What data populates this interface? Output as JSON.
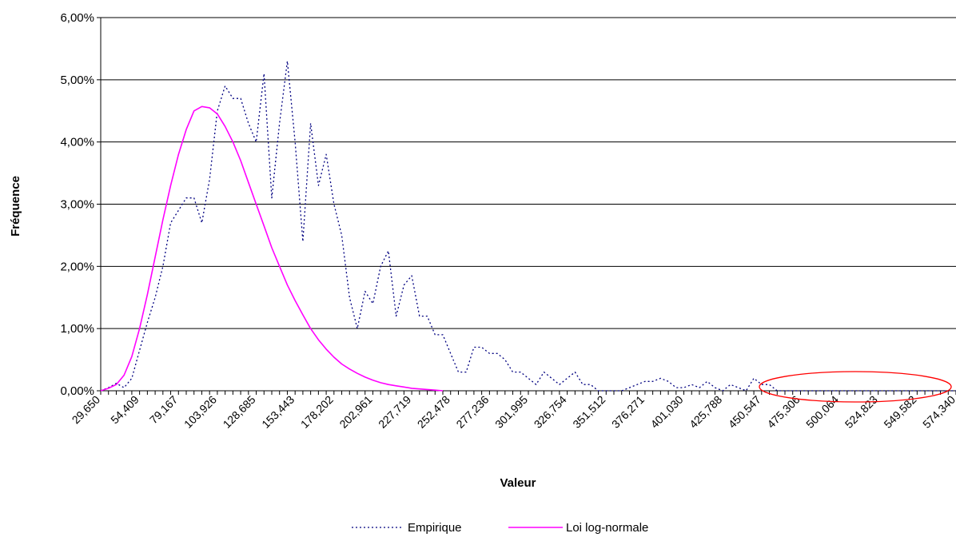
{
  "chart_data": {
    "type": "line",
    "title": "",
    "xlabel": "Valeur",
    "ylabel": "Fréquence",
    "ylim": [
      0,
      0.06
    ],
    "y_ticks": [
      "0,00%",
      "1,00%",
      "2,00%",
      "3,00%",
      "4,00%",
      "5,00%",
      "6,00%"
    ],
    "x_ticks": [
      "29,650",
      "54,409",
      "79,167",
      "103,926",
      "128,685",
      "153,443",
      "178,202",
      "202,961",
      "227,719",
      "252,478",
      "277,236",
      "301,995",
      "326,754",
      "351,512",
      "376,271",
      "401,030",
      "425,788",
      "450,547",
      "475,306",
      "500,064",
      "524,823",
      "549,582",
      "574,340"
    ],
    "x_start": 29.65,
    "x_step": 4.9517,
    "grid": "horizontal",
    "legend_position": "bottom",
    "annotation": "red ellipse around the right tail (approx. 475–574)",
    "series": [
      {
        "name": "Empirique",
        "style": "dotted",
        "color": "#000080",
        "values": [
          0.0,
          0.0005,
          0.0012,
          0.0005,
          0.002,
          0.0065,
          0.011,
          0.015,
          0.02,
          0.027,
          0.029,
          0.031,
          0.031,
          0.027,
          0.034,
          0.045,
          0.049,
          0.047,
          0.047,
          0.043,
          0.04,
          0.051,
          0.031,
          0.043,
          0.053,
          0.04,
          0.024,
          0.043,
          0.033,
          0.038,
          0.03,
          0.025,
          0.015,
          0.01,
          0.016,
          0.014,
          0.02,
          0.0225,
          0.012,
          0.017,
          0.0185,
          0.012,
          0.012,
          0.009,
          0.009,
          0.006,
          0.003,
          0.003,
          0.007,
          0.007,
          0.006,
          0.006,
          0.005,
          0.003,
          0.003,
          0.002,
          0.001,
          0.003,
          0.002,
          0.001,
          0.002,
          0.003,
          0.001,
          0.001,
          0.0,
          0.0,
          0.0,
          0.0,
          0.0005,
          0.001,
          0.0015,
          0.0015,
          0.002,
          0.0015,
          0.0005,
          0.0005,
          0.001,
          0.0005,
          0.0015,
          0.0005,
          0.0,
          0.001,
          0.0005,
          0.0,
          0.002,
          0.001,
          0.001,
          0.0,
          0.0,
          0.0,
          0.0,
          0.0,
          0.0,
          0.0,
          0.0,
          0.0,
          0.0,
          0.0,
          0.0,
          0.0,
          0.0,
          0.0,
          0.0,
          0.0,
          0.0,
          0.0,
          0.0,
          0.0,
          0.0,
          0.0,
          0.0,
          0.0,
          0.0,
          0.0,
          0.0,
          0.0,
          0.0,
          0.0005,
          0.0,
          0.0,
          0.0,
          0.0,
          0.0,
          0.0,
          0.0,
          0.0,
          0.0,
          0.0,
          0.0,
          0.0,
          0.0,
          0.0,
          0.0005,
          0.0,
          0.0,
          0.0,
          0.0,
          0.0,
          0.0,
          0.0,
          0.0,
          0.0,
          0.0,
          0.0005
        ]
      },
      {
        "name": "Loi log-normale",
        "style": "solid",
        "color": "#ff00ff",
        "values": [
          0.0,
          0.0004,
          0.001,
          0.0025,
          0.0055,
          0.01,
          0.0155,
          0.0215,
          0.0275,
          0.033,
          0.038,
          0.042,
          0.045,
          0.0457,
          0.0455,
          0.0445,
          0.0425,
          0.04,
          0.037,
          0.0335,
          0.03,
          0.0265,
          0.023,
          0.02,
          0.017,
          0.0145,
          0.0122,
          0.01,
          0.0082,
          0.0067,
          0.0054,
          0.0043,
          0.0035,
          0.0028,
          0.0022,
          0.0017,
          0.0013,
          0.001,
          0.0008,
          0.0006,
          0.0004,
          0.0003,
          0.0002,
          0.0001,
          0.0
        ]
      }
    ]
  }
}
